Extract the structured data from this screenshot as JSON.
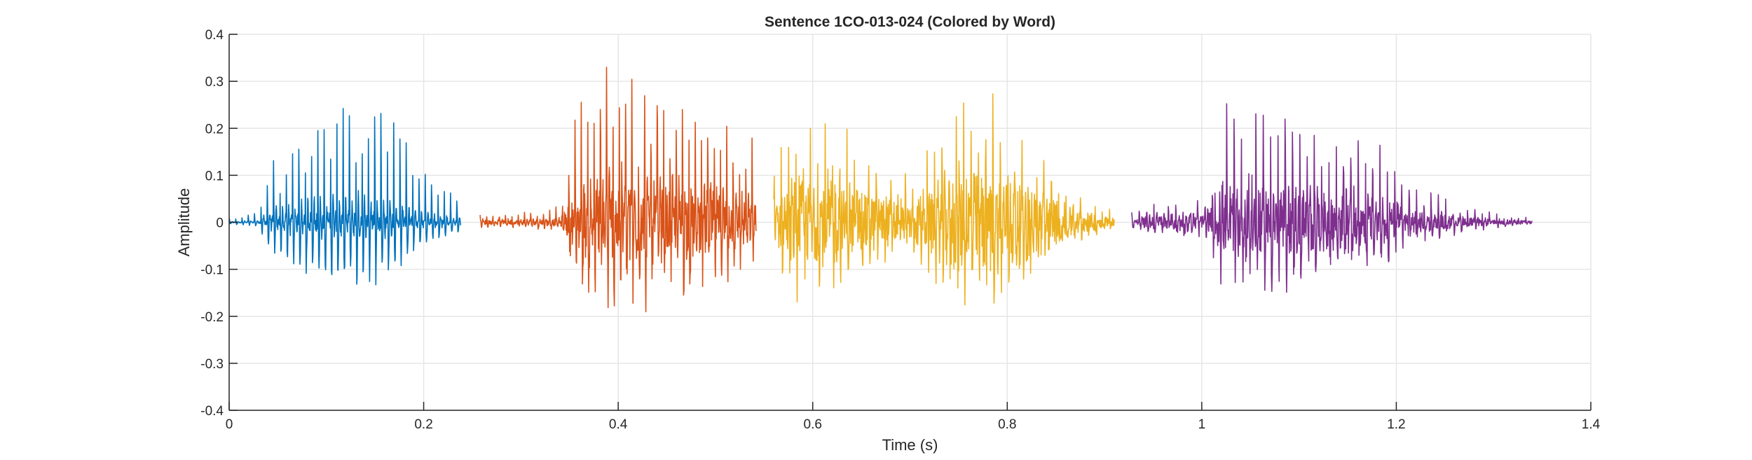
{
  "chart_data": {
    "type": "line",
    "title": "Sentence 1CO-013-024 (Colored by Word)",
    "xlabel": "Time (s)",
    "ylabel": "Amplitude",
    "xlim": [
      0,
      1.4
    ],
    "ylim": [
      -0.4,
      0.4
    ],
    "xticks": [
      0,
      0.2,
      0.4,
      0.6,
      0.8,
      1,
      1.2,
      1.4
    ],
    "xtick_labels": [
      "0",
      "0.2",
      "0.4",
      "0.6",
      "0.8",
      "1",
      "1.2",
      "1.4"
    ],
    "yticks": [
      0.4,
      0.3,
      0.2,
      0.1,
      0,
      -0.1,
      -0.2,
      -0.3,
      -0.4
    ],
    "ytick_labels": [
      "0.4",
      "0.3",
      "0.2",
      "0.1",
      "0",
      "-0.1",
      "-0.2",
      "-0.3",
      "-0.4"
    ],
    "grid": true,
    "series": [
      {
        "color": "#0072BD",
        "x_range": [
          0.0,
          0.238
        ],
        "pitch_period": 0.0065,
        "noise": 0.08,
        "envelope": [
          [
            0.0,
            0.01
          ],
          [
            0.03,
            0.02
          ],
          [
            0.04,
            0.12
          ],
          [
            0.06,
            0.2
          ],
          [
            0.1,
            0.28
          ],
          [
            0.14,
            0.3
          ],
          [
            0.17,
            0.25
          ],
          [
            0.2,
            0.12
          ],
          [
            0.238,
            0.05
          ]
        ]
      },
      {
        "color": "#D95319",
        "x_range": [
          0.258,
          0.542
        ],
        "pitch_period": 0.0065,
        "noise": 0.25,
        "envelope": [
          [
            0.258,
            0.02
          ],
          [
            0.3,
            0.02
          ],
          [
            0.34,
            0.03
          ],
          [
            0.355,
            0.2
          ],
          [
            0.38,
            0.33
          ],
          [
            0.4,
            0.37
          ],
          [
            0.43,
            0.3
          ],
          [
            0.46,
            0.27
          ],
          [
            0.49,
            0.26
          ],
          [
            0.52,
            0.2
          ],
          [
            0.542,
            0.15
          ]
        ]
      },
      {
        "color": "#EDB120",
        "x_range": [
          0.56,
          0.91
        ],
        "pitch_period": 0.0075,
        "noise": 0.45,
        "envelope": [
          [
            0.56,
            0.1
          ],
          [
            0.58,
            0.2
          ],
          [
            0.62,
            0.19
          ],
          [
            0.66,
            0.13
          ],
          [
            0.7,
            0.08
          ],
          [
            0.72,
            0.15
          ],
          [
            0.75,
            0.23
          ],
          [
            0.8,
            0.22
          ],
          [
            0.84,
            0.14
          ],
          [
            0.87,
            0.06
          ],
          [
            0.91,
            0.02
          ]
        ]
      },
      {
        "color": "#7E2F8E",
        "x_range": [
          0.928,
          1.34
        ],
        "pitch_period": 0.0075,
        "noise": 0.3,
        "envelope": [
          [
            0.928,
            0.02
          ],
          [
            0.95,
            0.05
          ],
          [
            0.99,
            0.06
          ],
          [
            1.0,
            0.04
          ],
          [
            1.01,
            0.1
          ],
          [
            1.02,
            0.22
          ],
          [
            1.05,
            0.24
          ],
          [
            1.1,
            0.22
          ],
          [
            1.14,
            0.2
          ],
          [
            1.18,
            0.16
          ],
          [
            1.22,
            0.09
          ],
          [
            1.26,
            0.04
          ],
          [
            1.3,
            0.02
          ],
          [
            1.34,
            0.01
          ]
        ]
      }
    ]
  }
}
